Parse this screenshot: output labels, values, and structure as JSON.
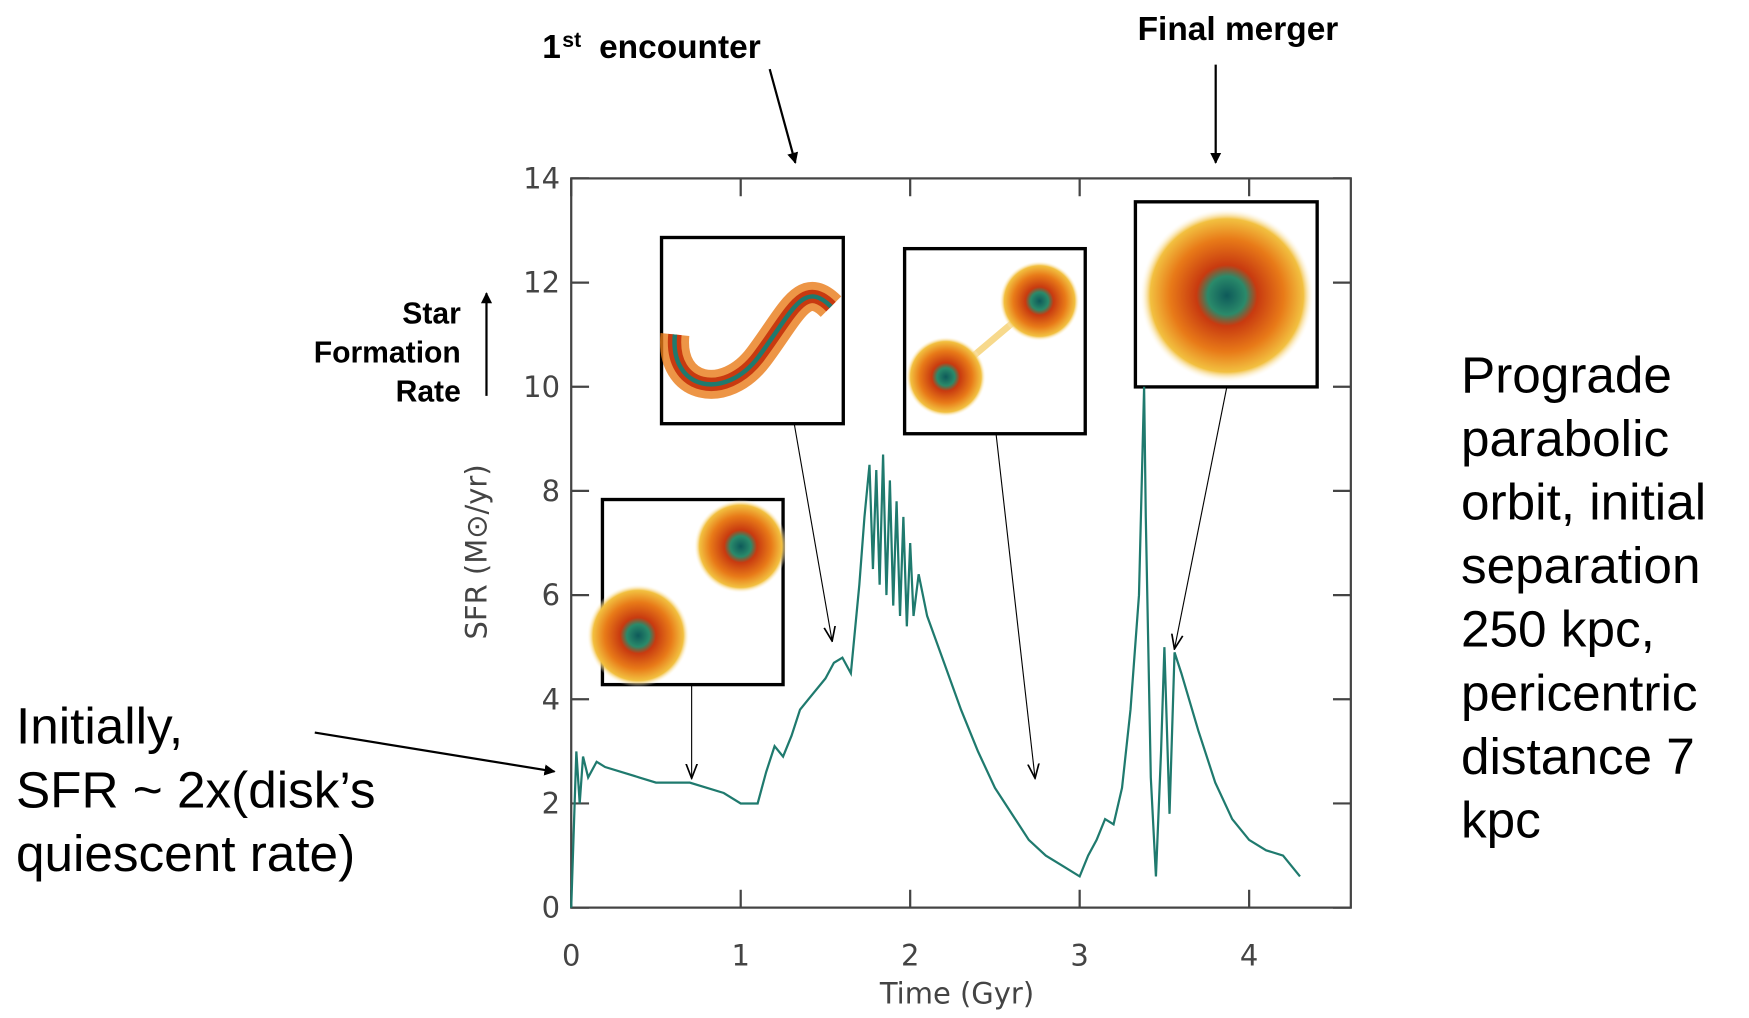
{
  "chart_data": {
    "type": "line",
    "x_label": "Time (Gyr)",
    "y_label": "SFR (M⊙/yr)",
    "color": "#1f7a6e",
    "x": [
      0,
      0.03,
      0.05,
      0.07,
      0.1,
      0.15,
      0.2,
      0.3,
      0.4,
      0.5,
      0.6,
      0.7,
      0.8,
      0.9,
      1.0,
      1.1,
      1.15,
      1.2,
      1.25,
      1.3,
      1.35,
      1.4,
      1.5,
      1.55,
      1.6,
      1.65,
      1.7,
      1.73,
      1.76,
      1.78,
      1.8,
      1.82,
      1.84,
      1.86,
      1.88,
      1.9,
      1.92,
      1.94,
      1.96,
      1.98,
      2.0,
      2.02,
      2.05,
      2.1,
      2.2,
      2.3,
      2.4,
      2.5,
      2.6,
      2.7,
      2.8,
      2.9,
      3.0,
      3.05,
      3.1,
      3.15,
      3.2,
      3.25,
      3.3,
      3.35,
      3.38,
      3.39,
      3.42,
      3.45,
      3.48,
      3.5,
      3.53,
      3.56,
      3.6,
      3.7,
      3.8,
      3.9,
      4.0,
      4.1,
      4.2,
      4.3
    ],
    "values": [
      0,
      3.0,
      2.0,
      2.9,
      2.5,
      2.8,
      2.7,
      2.6,
      2.5,
      2.4,
      2.4,
      2.4,
      2.3,
      2.2,
      2.0,
      2.0,
      2.6,
      3.1,
      2.9,
      3.3,
      3.8,
      4.0,
      4.4,
      4.7,
      4.8,
      4.5,
      6.2,
      7.5,
      8.5,
      6.5,
      8.4,
      6.2,
      8.7,
      6.0,
      8.2,
      5.8,
      7.8,
      5.6,
      7.5,
      5.4,
      7.0,
      5.6,
      6.4,
      5.6,
      4.7,
      3.8,
      3.0,
      2.3,
      1.8,
      1.3,
      1.0,
      0.8,
      0.6,
      1.0,
      1.3,
      1.7,
      1.6,
      2.3,
      3.8,
      6.0,
      10.0,
      7.5,
      2.5,
      0.6,
      3.0,
      5.0,
      1.8,
      4.9,
      4.5,
      3.4,
      2.4,
      1.7,
      1.3,
      1.1,
      1.0,
      0.6
    ],
    "xlim": [
      0,
      4.6
    ],
    "ylim": [
      0,
      14
    ],
    "xticks": [
      0,
      1,
      2,
      3,
      4
    ],
    "yticks": [
      0,
      2,
      4,
      6,
      8,
      10,
      12,
      14
    ],
    "annotations": {
      "first_encounter": {
        "number": "1",
        "suffix": "st",
        "text": "encounter"
      },
      "final_merger": "Final merger",
      "sfr_arrow": [
        "Star",
        "Formation",
        "Rate"
      ],
      "initially": [
        "Initially,",
        "SFR ~ 2x(disk’s",
        "quiescent rate)"
      ],
      "orbit": [
        "Prograde",
        "parabolic",
        "orbit, initial",
        "separation",
        "250 kpc,",
        "pericentric",
        "distance 7",
        "kpc"
      ]
    }
  }
}
